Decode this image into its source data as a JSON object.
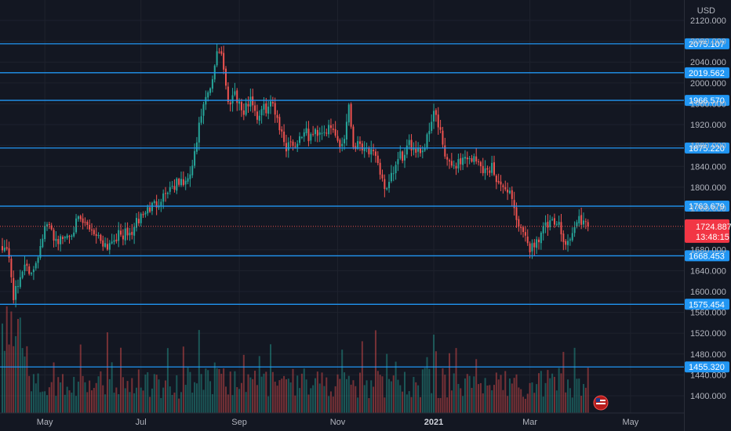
{
  "chart_data": {
    "type": "candlestick",
    "currency_label": "USD",
    "y_axis": {
      "range": [
        1385,
        2126
      ],
      "ticks": [
        "1400.000",
        "1440.000",
        "1480.000",
        "1520.000",
        "1560.000",
        "1600.000",
        "1640.000",
        "1680.000",
        "1720.000",
        "1760.000",
        "1800.000",
        "1840.000",
        "1880.000",
        "1920.000",
        "1960.000",
        "2000.000",
        "2040.000",
        "2080.000",
        "2120.000"
      ]
    },
    "x_axis": {
      "ticks": [
        {
          "label": "May",
          "index": 19,
          "bold": false
        },
        {
          "label": "Jul",
          "index": 62,
          "bold": false
        },
        {
          "label": "Sep",
          "index": 106,
          "bold": false
        },
        {
          "label": "Nov",
          "index": 150,
          "bold": false
        },
        {
          "label": "2021",
          "index": 193,
          "bold": true
        },
        {
          "label": "Mar",
          "index": 236,
          "bold": false
        },
        {
          "label": "May",
          "index": 281,
          "bold": false
        }
      ]
    },
    "levels": [
      {
        "value": 2075.107,
        "label": "2075.107"
      },
      {
        "value": 2019.562,
        "label": "2019.562"
      },
      {
        "value": 1966.57,
        "label": "1966.570"
      },
      {
        "value": 1875.22,
        "label": "1875.220"
      },
      {
        "value": 1763.679,
        "label": "1763.679"
      },
      {
        "value": 1668.453,
        "label": "1668.453"
      },
      {
        "value": 1575.454,
        "label": "1575.454"
      },
      {
        "value": 1455.32,
        "label": "1455.320"
      }
    ],
    "current_price": {
      "value": 1724.887,
      "label": "1724.887",
      "countdown": "13:48:15"
    },
    "price_anchors": [
      [
        0,
        1690
      ],
      [
        3,
        1670
      ],
      [
        5,
        1590
      ],
      [
        7,
        1610
      ],
      [
        10,
        1660
      ],
      [
        12,
        1625
      ],
      [
        14,
        1648
      ],
      [
        16,
        1672
      ],
      [
        18,
        1710
      ],
      [
        20,
        1728
      ],
      [
        24,
        1700
      ],
      [
        26,
        1698
      ],
      [
        30,
        1712
      ],
      [
        34,
        1735
      ],
      [
        36,
        1730
      ],
      [
        40,
        1720
      ],
      [
        44,
        1700
      ],
      [
        47,
        1688
      ],
      [
        50,
        1705
      ],
      [
        55,
        1710
      ],
      [
        57,
        1708
      ],
      [
        62,
        1745
      ],
      [
        66,
        1760
      ],
      [
        69,
        1770
      ],
      [
        72,
        1785
      ],
      [
        75,
        1800
      ],
      [
        80,
        1810
      ],
      [
        83,
        1808
      ],
      [
        86,
        1860
      ],
      [
        89,
        1940
      ],
      [
        91,
        1965
      ],
      [
        94,
        2000
      ],
      [
        96,
        2065
      ],
      [
        98,
        2060
      ],
      [
        101,
        1960
      ],
      [
        104,
        1985
      ],
      [
        106,
        1960
      ],
      [
        108,
        1940
      ],
      [
        111,
        1975
      ],
      [
        114,
        1935
      ],
      [
        117,
        1950
      ],
      [
        119,
        1955
      ],
      [
        121,
        1960
      ],
      [
        123,
        1935
      ],
      [
        125,
        1900
      ],
      [
        127,
        1878
      ],
      [
        129,
        1890
      ],
      [
        131,
        1880
      ],
      [
        135,
        1910
      ],
      [
        137,
        1895
      ],
      [
        140,
        1905
      ],
      [
        143,
        1910
      ],
      [
        145,
        1910
      ],
      [
        148,
        1908
      ],
      [
        151,
        1880
      ],
      [
        153,
        1895
      ],
      [
        155,
        1960
      ],
      [
        157,
        1880
      ],
      [
        160,
        1885
      ],
      [
        163,
        1875
      ],
      [
        166,
        1860
      ],
      [
        169,
        1830
      ],
      [
        172,
        1790
      ],
      [
        175,
        1830
      ],
      [
        178,
        1860
      ],
      [
        180,
        1858
      ],
      [
        182,
        1880
      ],
      [
        186,
        1875
      ],
      [
        188,
        1870
      ],
      [
        190,
        1895
      ],
      [
        193,
        1950
      ],
      [
        196,
        1900
      ],
      [
        198,
        1860
      ],
      [
        200,
        1840
      ],
      [
        203,
        1845
      ],
      [
        206,
        1855
      ],
      [
        209,
        1858
      ],
      [
        212,
        1850
      ],
      [
        214,
        1840
      ],
      [
        217,
        1830
      ],
      [
        219,
        1840
      ],
      [
        222,
        1810
      ],
      [
        224,
        1790
      ],
      [
        226,
        1800
      ],
      [
        228,
        1780
      ],
      [
        230,
        1740
      ],
      [
        232,
        1715
      ],
      [
        234,
        1698
      ],
      [
        236,
        1685
      ],
      [
        238,
        1690
      ],
      [
        240,
        1705
      ],
      [
        242,
        1722
      ],
      [
        245,
        1728
      ],
      [
        248,
        1730
      ],
      [
        250,
        1720
      ],
      [
        252,
        1690
      ],
      [
        254,
        1702
      ],
      [
        256,
        1720
      ],
      [
        258,
        1742
      ],
      [
        260,
        1730
      ],
      [
        262,
        1724.887
      ]
    ]
  }
}
